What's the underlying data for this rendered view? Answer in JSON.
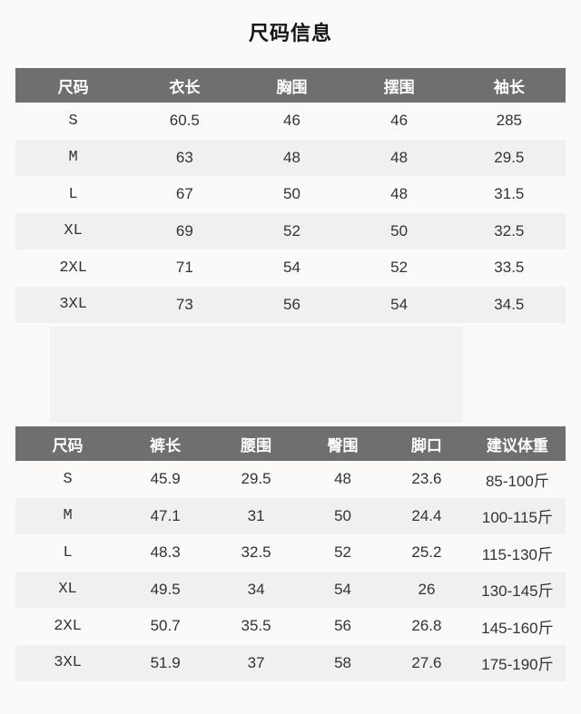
{
  "page": {
    "title": "尺码信息"
  },
  "tables": [
    {
      "name": "top-size-table",
      "headers": [
        "尺码",
        "衣长",
        "胸围",
        "摆围",
        "袖长"
      ],
      "rows": [
        [
          "S",
          "60.5",
          "46",
          "46",
          "285"
        ],
        [
          "M",
          "63",
          "48",
          "48",
          "29.5"
        ],
        [
          "L",
          "67",
          "50",
          "48",
          "31.5"
        ],
        [
          "XL",
          "69",
          "52",
          "50",
          "32.5"
        ],
        [
          "2XL",
          "71",
          "54",
          "52",
          "33.5"
        ],
        [
          "3XL",
          "73",
          "56",
          "54",
          "34.5"
        ]
      ]
    },
    {
      "name": "bottom-size-table",
      "headers": [
        "尺码",
        "裤长",
        "腰围",
        "臀围",
        "脚口",
        "建议体重"
      ],
      "rows": [
        [
          "S",
          "45.9",
          "29.5",
          "48",
          "23.6",
          "85-100斤"
        ],
        [
          "M",
          "47.1",
          "31",
          "50",
          "24.4",
          "100-115斤"
        ],
        [
          "L",
          "48.3",
          "32.5",
          "52",
          "25.2",
          "115-130斤"
        ],
        [
          "XL",
          "49.5",
          "34",
          "54",
          "26",
          "130-145斤"
        ],
        [
          "2XL",
          "50.7",
          "35.5",
          "56",
          "26.8",
          "145-160斤"
        ],
        [
          "3XL",
          "51.9",
          "37",
          "58",
          "27.6",
          "175-190斤"
        ]
      ]
    }
  ],
  "colors": {
    "page_bg": "#fbfaf8",
    "header_bg": "#6f6f6f",
    "header_text": "#ffffff",
    "stripe": "#f2f0ee",
    "body_text": "#333333"
  }
}
